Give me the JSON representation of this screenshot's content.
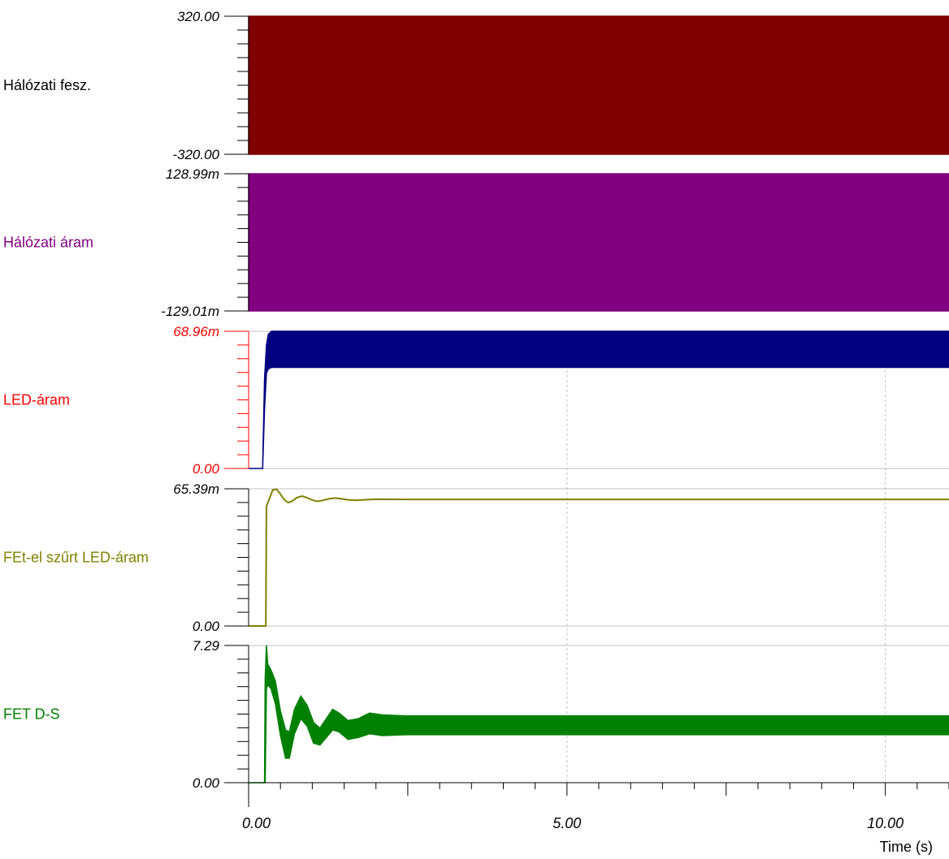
{
  "chart_data": {
    "type": "line",
    "xlabel": "Time (s)",
    "xlim": [
      0,
      11
    ],
    "x_ticks": [
      {
        "value": 0,
        "label": "0.00"
      },
      {
        "value": 5,
        "label": "5.00"
      },
      {
        "value": 10,
        "label": "10.00"
      }
    ],
    "grid": true,
    "panels": [
      {
        "label": "Hálózati fesz.",
        "label_color": "#000000",
        "color": "#800000",
        "axis_color": "#000000",
        "ymax_label": "320.00",
        "ymin_label": "-320.00",
        "ylim": [
          -320,
          320
        ],
        "style": "fill",
        "envelope": [
          {
            "x": 0.0,
            "lo": -320,
            "hi": 320
          },
          {
            "x": 11.0,
            "lo": -320,
            "hi": 320
          }
        ]
      },
      {
        "label": "Hálózati áram",
        "label_color": "#800080",
        "color": "#800080",
        "axis_color": "#000000",
        "ymax_label": "128.99m",
        "ymin_label": "-129.01m",
        "ylim": [
          -0.12901,
          0.12899
        ],
        "style": "fill",
        "envelope": [
          {
            "x": 0.0,
            "lo": -0.129,
            "hi": 0.129
          },
          {
            "x": 11.0,
            "lo": -0.129,
            "hi": 0.129
          }
        ]
      },
      {
        "label": "LED-áram",
        "label_color": "#ff0000",
        "color": "#000080",
        "axis_color": "#ff0000",
        "ymax_label": "68.96m",
        "ymin_label": "0.00",
        "ylim": [
          0,
          0.06896
        ],
        "style": "band",
        "envelope": [
          {
            "x": 0.0,
            "lo": 0,
            "hi": 0
          },
          {
            "x": 0.22,
            "lo": 0,
            "hi": 0
          },
          {
            "x": 0.25,
            "lo": 0.03,
            "hi": 0.045
          },
          {
            "x": 0.28,
            "lo": 0.048,
            "hi": 0.062
          },
          {
            "x": 0.31,
            "lo": 0.05,
            "hi": 0.0675
          },
          {
            "x": 0.36,
            "lo": 0.0508,
            "hi": 0.06896
          },
          {
            "x": 11.0,
            "lo": 0.0508,
            "hi": 0.06896
          }
        ]
      },
      {
        "label": "FEt-el szűrt LED-áram",
        "label_color": "#808000",
        "color": "#808000",
        "axis_color": "#000000",
        "ymax_label": "65.39m",
        "ymin_label": "0.00",
        "ylim": [
          0,
          0.06539
        ],
        "style": "line",
        "points": [
          [
            0.0,
            0
          ],
          [
            0.27,
            0
          ],
          [
            0.28,
            0.057
          ],
          [
            0.33,
            0.061
          ],
          [
            0.38,
            0.0648
          ],
          [
            0.44,
            0.0652
          ],
          [
            0.5,
            0.0628
          ],
          [
            0.56,
            0.0602
          ],
          [
            0.62,
            0.0588
          ],
          [
            0.68,
            0.0594
          ],
          [
            0.76,
            0.0612
          ],
          [
            0.84,
            0.0619
          ],
          [
            0.92,
            0.0611
          ],
          [
            1.0,
            0.06
          ],
          [
            1.08,
            0.0594
          ],
          [
            1.16,
            0.0598
          ],
          [
            1.26,
            0.0606
          ],
          [
            1.36,
            0.061
          ],
          [
            1.46,
            0.0606
          ],
          [
            1.56,
            0.0601
          ],
          [
            1.68,
            0.0599
          ],
          [
            1.8,
            0.0601
          ],
          [
            2.0,
            0.0604
          ],
          [
            2.5,
            0.0603
          ],
          [
            11.0,
            0.0603
          ]
        ]
      },
      {
        "label": "FET D-S",
        "label_color": "#008000",
        "color": "#008000",
        "axis_color": "#000000",
        "ymax_label": "7.29",
        "ymin_label": "0.00",
        "ylim": [
          0,
          7.29
        ],
        "style": "band",
        "envelope": [
          {
            "x": 0.0,
            "lo": 0,
            "hi": 0
          },
          {
            "x": 0.25,
            "lo": 0,
            "hi": 0
          },
          {
            "x": 0.26,
            "lo": 0,
            "hi": 5.5
          },
          {
            "x": 0.28,
            "lo": 5.0,
            "hi": 7.29
          },
          {
            "x": 0.3,
            "lo": 5.2,
            "hi": 6.3
          },
          {
            "x": 0.35,
            "lo": 5.0,
            "hi": 6.0
          },
          {
            "x": 0.42,
            "lo": 4.2,
            "hi": 5.4
          },
          {
            "x": 0.5,
            "lo": 2.5,
            "hi": 3.8
          },
          {
            "x": 0.58,
            "lo": 1.3,
            "hi": 2.8
          },
          {
            "x": 0.64,
            "lo": 1.3,
            "hi": 2.7
          },
          {
            "x": 0.72,
            "lo": 2.6,
            "hi": 3.9
          },
          {
            "x": 0.82,
            "lo": 3.4,
            "hi": 4.6
          },
          {
            "x": 0.92,
            "lo": 3.0,
            "hi": 4.1
          },
          {
            "x": 1.02,
            "lo": 2.1,
            "hi": 3.2
          },
          {
            "x": 1.12,
            "lo": 2.0,
            "hi": 2.9
          },
          {
            "x": 1.22,
            "lo": 2.4,
            "hi": 3.4
          },
          {
            "x": 1.32,
            "lo": 2.8,
            "hi": 3.9
          },
          {
            "x": 1.42,
            "lo": 2.7,
            "hi": 3.7
          },
          {
            "x": 1.56,
            "lo": 2.3,
            "hi": 3.3
          },
          {
            "x": 1.72,
            "lo": 2.4,
            "hi": 3.4
          },
          {
            "x": 1.9,
            "lo": 2.6,
            "hi": 3.7
          },
          {
            "x": 2.1,
            "lo": 2.5,
            "hi": 3.6
          },
          {
            "x": 2.5,
            "lo": 2.55,
            "hi": 3.55
          },
          {
            "x": 11.0,
            "lo": 2.55,
            "hi": 3.55
          }
        ]
      }
    ]
  }
}
